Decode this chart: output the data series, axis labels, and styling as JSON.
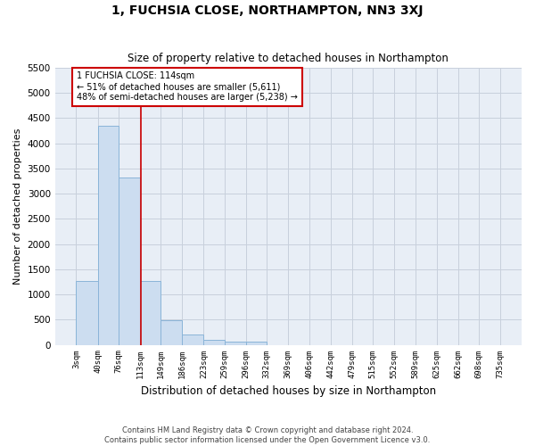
{
  "title": "1, FUCHSIA CLOSE, NORTHAMPTON, NN3 3XJ",
  "subtitle": "Size of property relative to detached houses in Northampton",
  "xlabel": "Distribution of detached houses by size in Northampton",
  "ylabel": "Number of detached properties",
  "footer_line1": "Contains HM Land Registry data © Crown copyright and database right 2024.",
  "footer_line2": "Contains public sector information licensed under the Open Government Licence v3.0.",
  "bar_color": "#ccddf0",
  "bar_edge_color": "#8ab4d8",
  "grid_color": "#c8d0dc",
  "background_color": "#e8eef6",
  "vline_color": "#cc0000",
  "vline_x": 114,
  "annotation_text": "1 FUCHSIA CLOSE: 114sqm\n← 51% of detached houses are smaller (5,611)\n48% of semi-detached houses are larger (5,238) →",
  "annotation_box_color": "#cc0000",
  "bin_edges": [
    3,
    40,
    76,
    113,
    149,
    186,
    223,
    259,
    296,
    332,
    369,
    406,
    442,
    479,
    515,
    552,
    589,
    625,
    662,
    698,
    735
  ],
  "bar_heights": [
    1260,
    4350,
    3320,
    1260,
    490,
    210,
    95,
    65,
    55,
    0,
    0,
    0,
    0,
    0,
    0,
    0,
    0,
    0,
    0,
    0
  ],
  "ylim": [
    0,
    5500
  ],
  "yticks": [
    0,
    500,
    1000,
    1500,
    2000,
    2500,
    3000,
    3500,
    4000,
    4500,
    5000,
    5500
  ]
}
